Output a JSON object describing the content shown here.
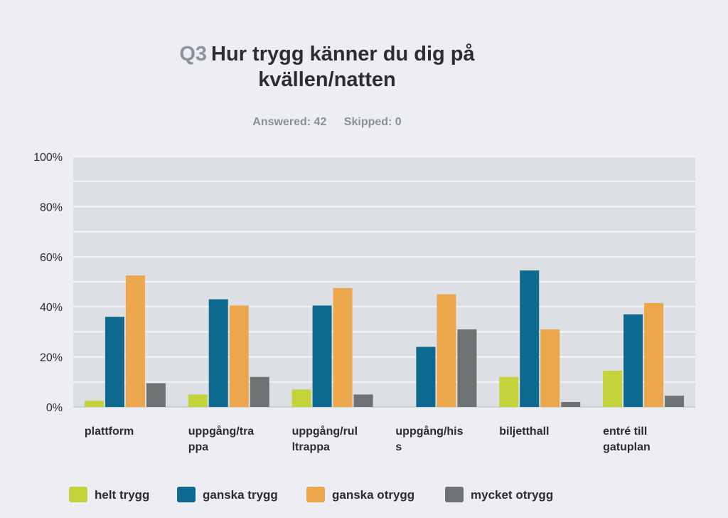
{
  "title": {
    "qnum": "Q3",
    "line1": "Hur trygg känner du dig på",
    "line2": "kvällen/natten"
  },
  "stats": {
    "answered": "Answered: 42",
    "skipped": "Skipped: 0"
  },
  "colors": {
    "helt_trygg": "#c4d23b",
    "ganska_trygg": "#0d6a8e",
    "ganska_otrygg": "#eca64b",
    "mycket_otrygg": "#6f7273",
    "plot_bg": "#dcdfe4",
    "grid": "#f4f5f7"
  },
  "chart_data": {
    "type": "bar",
    "title": "Q3 Hur trygg känner du dig på kvällen/natten",
    "categories": [
      [
        "plattform"
      ],
      [
        "uppgång/tra",
        "ppa"
      ],
      [
        "uppgång/rul",
        "ltrappa"
      ],
      [
        "uppgång/his",
        "s"
      ],
      [
        "biljetthall"
      ],
      [
        "entré till",
        "gatuplan"
      ]
    ],
    "series": [
      {
        "name": "helt trygg",
        "color_key": "helt_trygg",
        "values": [
          2.5,
          5,
          7,
          0,
          12,
          14.5
        ]
      },
      {
        "name": "ganska trygg",
        "color_key": "ganska_trygg",
        "values": [
          36,
          43,
          40.5,
          24,
          54.5,
          37
        ]
      },
      {
        "name": "ganska otrygg",
        "color_key": "ganska_otrygg",
        "values": [
          52.5,
          40.5,
          47.5,
          45,
          31,
          41.5
        ]
      },
      {
        "name": "mycket otrygg",
        "color_key": "mycket_otrygg",
        "values": [
          9.5,
          12,
          5,
          31,
          2,
          4.5
        ]
      }
    ],
    "yticks": [
      "0%",
      "20%",
      "40%",
      "60%",
      "80%",
      "100%"
    ],
    "ylim": [
      0,
      100
    ],
    "grid": true,
    "legend_position": "bottom"
  }
}
